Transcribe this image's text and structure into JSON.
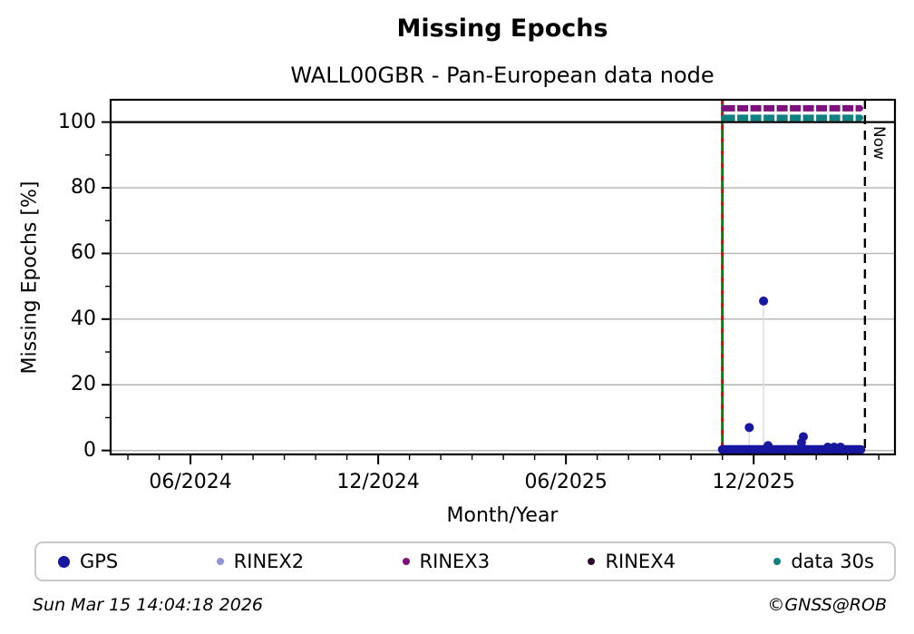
{
  "header": {
    "title": "Missing Epochs",
    "subtitle": "WALL00GBR - Pan-European data node"
  },
  "chart_data": {
    "type": "scatter",
    "title": "Missing Epochs",
    "subtitle": "WALL00GBR - Pan-European data node",
    "xlabel": "Month/Year",
    "ylabel": "Missing Epochs [%]",
    "grid": "horizontal-only",
    "grid_color": "#b3b3b3",
    "stem_color": "#dcdce8",
    "x_axis": {
      "unit": "decimal_year",
      "min": 2024.204,
      "max": 2026.293,
      "major_ticks": [
        {
          "label": "06/2024",
          "value": 2024.4167
        },
        {
          "label": "12/2024",
          "value": 2024.9167
        },
        {
          "label": "06/2025",
          "value": 2025.4167
        },
        {
          "label": "12/2025",
          "value": 2025.9167
        }
      ],
      "minor_tick_step_months": 1
    },
    "y_axis": {
      "min": -1.2,
      "max": 106.8,
      "major_ticks": [
        0,
        20,
        40,
        60,
        80,
        100
      ],
      "minor_ticks": [
        10,
        30,
        50,
        70,
        90
      ],
      "gridlines": [
        0,
        20,
        40,
        60,
        80
      ]
    },
    "reference_lines": {
      "hline_100": {
        "y": 100,
        "color": "#000000",
        "style": "solid"
      },
      "data_start": {
        "x": 2025.8333,
        "color_main": "#0a800a",
        "color_dash": "#d01010",
        "style": "green-red-dashed"
      },
      "now": {
        "x": 2026.213,
        "label": "Now",
        "color": "#000000",
        "style": "dashed"
      }
    },
    "series": [
      {
        "name": "GPS",
        "color": "#1717a0",
        "marker_radius": 5,
        "baseline_run": {
          "x_start": 2025.833,
          "x_end": 2026.205,
          "y": 0.3,
          "point_step_days": 1
        },
        "spikes": [
          {
            "x": 2025.905,
            "y": 7
          },
          {
            "x": 2025.943,
            "y": 45.5
          },
          {
            "x": 2025.955,
            "y": 1.5
          },
          {
            "x": 2026.044,
            "y": 2.4
          },
          {
            "x": 2026.049,
            "y": 4.2
          },
          {
            "x": 2026.114,
            "y": 1.0
          },
          {
            "x": 2026.131,
            "y": 1.0
          },
          {
            "x": 2026.148,
            "y": 1.0
          }
        ]
      },
      {
        "name": "RINEX2",
        "color": "#9191d6",
        "visible_points": 0
      },
      {
        "name": "RINEX3",
        "color": "#7d107d",
        "band": {
          "x_start": 2025.838,
          "x_end": 2026.2,
          "y": 104.2
        }
      },
      {
        "name": "RINEX4",
        "color": "#2e0e2e",
        "visible_points": 0
      },
      {
        "name": "data 30s",
        "color": "#108080",
        "band": {
          "x_start": 2025.838,
          "x_end": 2026.2,
          "y": 101.3
        }
      }
    ]
  },
  "legend": {
    "items": [
      {
        "label": "GPS",
        "color": "#1717a0",
        "marker": "circle-large"
      },
      {
        "label": "RINEX2",
        "color": "#9191d6",
        "marker": "circle-small"
      },
      {
        "label": "RINEX3",
        "color": "#7d107d",
        "marker": "circle-small"
      },
      {
        "label": "RINEX4",
        "color": "#2e0e2e",
        "marker": "circle-small"
      },
      {
        "label": "data 30s",
        "color": "#108080",
        "marker": "circle-small"
      }
    ]
  },
  "footer": {
    "timestamp": "Sun Mar 15 14:04:18 2026",
    "copyright": "©GNSS@ROB"
  }
}
